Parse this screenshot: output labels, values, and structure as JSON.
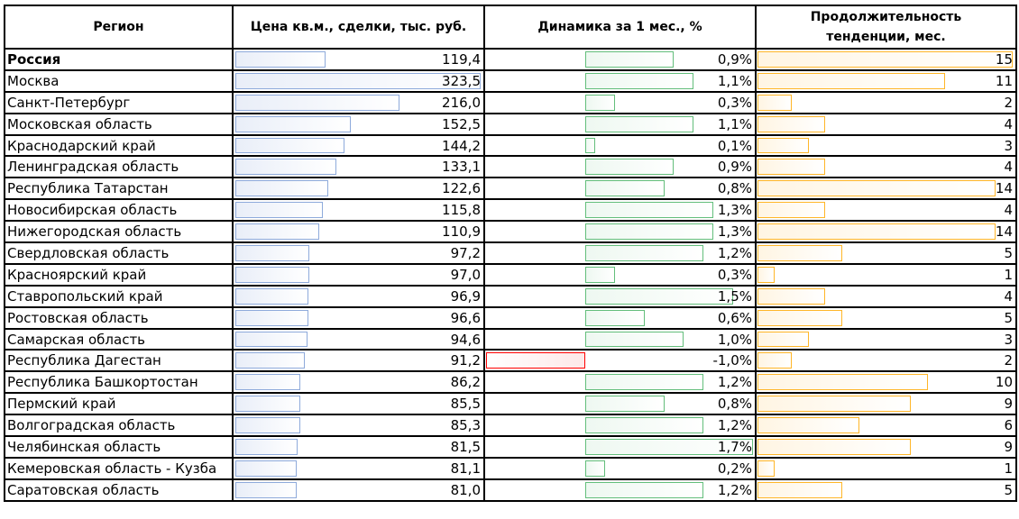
{
  "table": {
    "headers": [
      "Регион",
      "Цена кв.м., сделки, тыс. руб.",
      "Динамика за 1 мес., %",
      "Продолжительность тенденции, мес."
    ],
    "header_line2": [
      "",
      "",
      "",
      ""
    ],
    "colors": {
      "price_bar": "#8eaadb",
      "dynamics_positive_bar": "#63be7b",
      "dynamics_negative_bar": "#ff0000",
      "duration_bar": "#ffb628",
      "grid": "#000000"
    },
    "rows": [
      {
        "region": "Россия",
        "bold": true,
        "price": "119,4",
        "price_num": 119.4,
        "dynamics": "0,9%",
        "dynamics_num": 0.9,
        "duration": "15",
        "duration_num": 15
      },
      {
        "region": "Москва",
        "bold": false,
        "price": "323,5",
        "price_num": 323.5,
        "dynamics": "1,1%",
        "dynamics_num": 1.1,
        "duration": "11",
        "duration_num": 11
      },
      {
        "region": "Санкт-Петербург",
        "bold": false,
        "price": "216,0",
        "price_num": 216.0,
        "dynamics": "0,3%",
        "dynamics_num": 0.3,
        "duration": "2",
        "duration_num": 2
      },
      {
        "region": "Московская область",
        "bold": false,
        "price": "152,5",
        "price_num": 152.5,
        "dynamics": "1,1%",
        "dynamics_num": 1.1,
        "duration": "4",
        "duration_num": 4
      },
      {
        "region": "Краснодарский край",
        "bold": false,
        "price": "144,2",
        "price_num": 144.2,
        "dynamics": "0,1%",
        "dynamics_num": 0.1,
        "duration": "3",
        "duration_num": 3
      },
      {
        "region": "Ленинградская область",
        "bold": false,
        "price": "133,1",
        "price_num": 133.1,
        "dynamics": "0,9%",
        "dynamics_num": 0.9,
        "duration": "4",
        "duration_num": 4
      },
      {
        "region": "Республика Татарстан",
        "bold": false,
        "price": "122,6",
        "price_num": 122.6,
        "dynamics": "0,8%",
        "dynamics_num": 0.8,
        "duration": "14",
        "duration_num": 14
      },
      {
        "region": "Новосибирская область",
        "bold": false,
        "price": "115,8",
        "price_num": 115.8,
        "dynamics": "1,3%",
        "dynamics_num": 1.3,
        "duration": "4",
        "duration_num": 4
      },
      {
        "region": "Нижегородская область",
        "bold": false,
        "price": "110,9",
        "price_num": 110.9,
        "dynamics": "1,3%",
        "dynamics_num": 1.3,
        "duration": "14",
        "duration_num": 14
      },
      {
        "region": "Свердловская область",
        "bold": false,
        "price": "97,2",
        "price_num": 97.2,
        "dynamics": "1,2%",
        "dynamics_num": 1.2,
        "duration": "5",
        "duration_num": 5
      },
      {
        "region": "Красноярский край",
        "bold": false,
        "price": "97,0",
        "price_num": 97.0,
        "dynamics": "0,3%",
        "dynamics_num": 0.3,
        "duration": "1",
        "duration_num": 1
      },
      {
        "region": "Ставропольский край",
        "bold": false,
        "price": "96,9",
        "price_num": 96.9,
        "dynamics": "1,5%",
        "dynamics_num": 1.5,
        "duration": "4",
        "duration_num": 4
      },
      {
        "region": "Ростовская область",
        "bold": false,
        "price": "96,6",
        "price_num": 96.6,
        "dynamics": "0,6%",
        "dynamics_num": 0.6,
        "duration": "5",
        "duration_num": 5
      },
      {
        "region": "Самарская область",
        "bold": false,
        "price": "94,6",
        "price_num": 94.6,
        "dynamics": "1,0%",
        "dynamics_num": 1.0,
        "duration": "3",
        "duration_num": 3
      },
      {
        "region": "Республика Дагестан",
        "bold": false,
        "price": "91,2",
        "price_num": 91.2,
        "dynamics": "-1,0%",
        "dynamics_num": -1.0,
        "duration": "2",
        "duration_num": 2
      },
      {
        "region": "Республика Башкортостан",
        "bold": false,
        "price": "86,2",
        "price_num": 86.2,
        "dynamics": "1,2%",
        "dynamics_num": 1.2,
        "duration": "10",
        "duration_num": 10
      },
      {
        "region": "Пермский край",
        "bold": false,
        "price": "85,5",
        "price_num": 85.5,
        "dynamics": "0,8%",
        "dynamics_num": 0.8,
        "duration": "9",
        "duration_num": 9
      },
      {
        "region": "Волгоградская область",
        "bold": false,
        "price": "85,3",
        "price_num": 85.3,
        "dynamics": "1,2%",
        "dynamics_num": 1.2,
        "duration": "6",
        "duration_num": 6
      },
      {
        "region": "Челябинская область",
        "bold": false,
        "price": "81,5",
        "price_num": 81.5,
        "dynamics": "1,7%",
        "dynamics_num": 1.7,
        "duration": "9",
        "duration_num": 9
      },
      {
        "region": "Кемеровская область - Кузба",
        "bold": false,
        "price": "81,1",
        "price_num": 81.1,
        "dynamics": "0,2%",
        "dynamics_num": 0.2,
        "duration": "1",
        "duration_num": 1
      },
      {
        "region": "Саратовская область",
        "bold": false,
        "price": "81,0",
        "price_num": 81.0,
        "dynamics": "1,2%",
        "dynamics_num": 1.2,
        "duration": "5",
        "duration_num": 5
      }
    ]
  }
}
